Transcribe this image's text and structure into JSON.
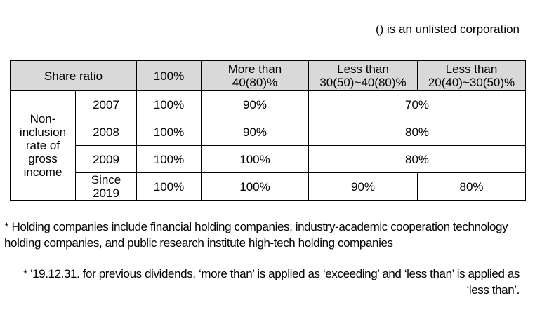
{
  "note": "() is an unlisted corporation",
  "table": {
    "headers": [
      "Share ratio",
      "100%",
      "More than\n40(80)%",
      "Less than\n30(50)~40(80)%",
      "Less than\n20(40)~30(50)%"
    ],
    "row_group_label": "Non-\ninclusion\nrate of\ngross\nincome",
    "rows": [
      {
        "year": "2007",
        "c100": "100%",
        "c40": "90%",
        "merged": "70%"
      },
      {
        "year": "2008",
        "c100": "100%",
        "c40": "90%",
        "merged": "80%"
      },
      {
        "year": "2009",
        "c100": "100%",
        "c40": "100%",
        "merged": "80%"
      },
      {
        "year": "Since\n2019",
        "c100": "100%",
        "c40": "100%",
        "c30": "90%",
        "c20": "80%"
      }
    ]
  },
  "footnotes": [
    "* Holding companies include financial holding companies, industry-academic cooperation technology holding companies, and public research institute high-tech holding companies",
    "* '19.12.31. for previous dividends, ‘more than’ is applied as ‘exceeding’ and ‘less than’ is applied as ‘less than’."
  ]
}
